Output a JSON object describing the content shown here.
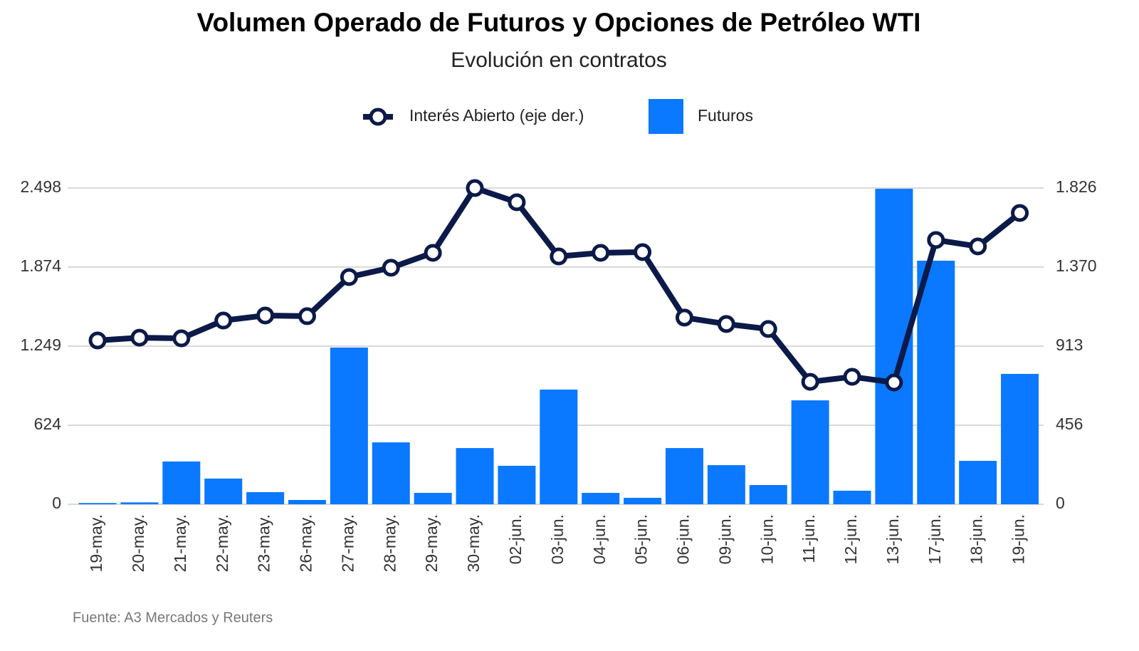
{
  "chart_data": {
    "type": "bar",
    "title": "Volumen Operado de Futuros y Opciones de Petróleo WTI",
    "subtitle": "Evolución en contratos",
    "source": "Fuente: A3 Mercados y Reuters",
    "categories": [
      "19-may.",
      "20-may.",
      "21-may.",
      "22-may.",
      "23-may.",
      "26-may.",
      "27-may.",
      "28-may.",
      "29-may.",
      "30-may.",
      "02-jun.",
      "03-jun.",
      "04-jun.",
      "05-jun.",
      "06-jun.",
      "09-jun.",
      "10-jun.",
      "11-jun.",
      "12-jun.",
      "13-jun.",
      "17-jun.",
      "18-jun.",
      "19-jun."
    ],
    "series": [
      {
        "name": "Interés Abierto (eje der.)",
        "type": "line",
        "axis": "y2",
        "color": "#0b1a48",
        "values": [
          946,
          962,
          958,
          1061,
          1090,
          1086,
          1312,
          1366,
          1452,
          1826,
          1744,
          1431,
          1452,
          1456,
          1078,
          1041,
          1012,
          707,
          736,
          703,
          1526,
          1489,
          1682
        ]
      },
      {
        "name": "Futuros",
        "type": "bar",
        "color": "#0a78ff",
        "values": [
          10,
          15,
          338,
          203,
          96,
          34,
          1238,
          489,
          90,
          444,
          304,
          906,
          90,
          51,
          444,
          309,
          152,
          821,
          107,
          2492,
          1924,
          343,
          1030
        ]
      }
    ],
    "ylim": [
      0,
      2498
    ],
    "yticks": [
      0,
      624,
      {
        "value": 1249,
        "label": "1.249"
      },
      {
        "value": 1874,
        "label": "1.874"
      },
      {
        "value": 2498,
        "label": "2.498"
      }
    ],
    "y2lim": [
      0,
      1826
    ],
    "y2ticks": [
      0,
      456,
      913,
      {
        "value": 1370,
        "label": "1.370"
      },
      {
        "value": 1826,
        "label": "1.826"
      }
    ],
    "grid": true,
    "legend": "top"
  }
}
